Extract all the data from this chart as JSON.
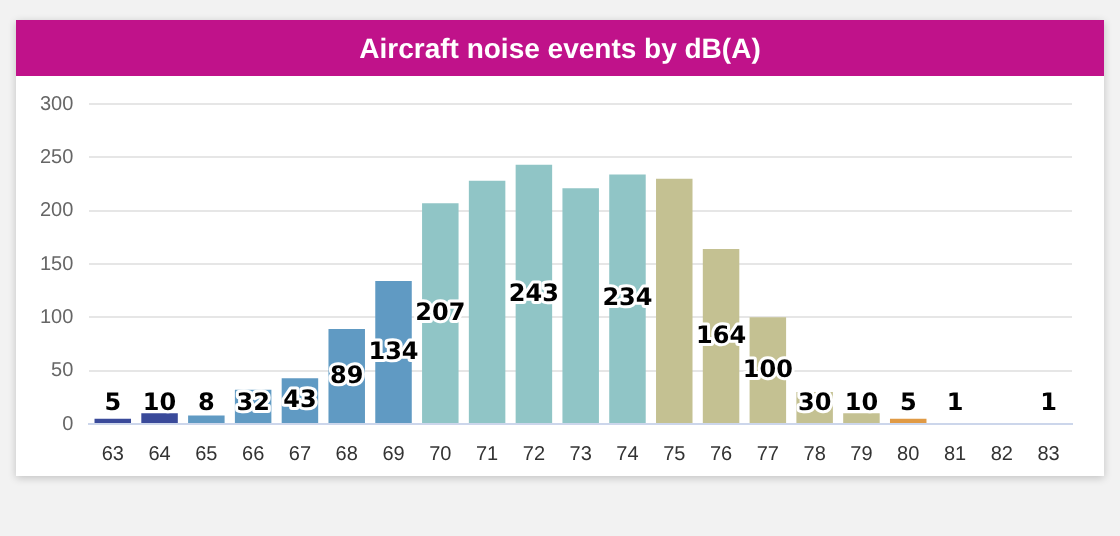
{
  "chart_data": {
    "type": "bar",
    "title": "Aircraft noise events by dB(A)",
    "categories": [
      "63",
      "64",
      "65",
      "66",
      "67",
      "68",
      "69",
      "70",
      "71",
      "72",
      "73",
      "74",
      "75",
      "76",
      "77",
      "78",
      "79",
      "80",
      "81",
      "82",
      "83"
    ],
    "values": [
      5,
      10,
      8,
      32,
      43,
      89,
      134,
      207,
      228,
      243,
      221,
      234,
      230,
      164,
      100,
      30,
      10,
      5,
      1,
      0,
      1
    ],
    "value_labels": [
      "5",
      "10",
      "8",
      "32",
      "43",
      "89",
      "134",
      "207",
      null,
      "243",
      null,
      "234",
      null,
      "164",
      "100",
      "30",
      "10",
      "5",
      "1",
      null,
      "1"
    ],
    "colors": [
      "#3a4a9a",
      "#3a4a9a",
      "#609ac3",
      "#609ac3",
      "#609ac3",
      "#609ac3",
      "#609ac3",
      "#90c5c6",
      "#90c5c6",
      "#90c5c6",
      "#90c5c6",
      "#90c5c6",
      "#c4c192",
      "#c4c192",
      "#c4c192",
      "#c4c192",
      "#c4c192",
      "#e09a45",
      "#e09a45",
      "#e09a45",
      "#e09a45"
    ],
    "ylim": [
      0,
      300
    ],
    "yticks": [
      0,
      50,
      100,
      150,
      200,
      250,
      300
    ],
    "grid": "y",
    "legend": false
  }
}
